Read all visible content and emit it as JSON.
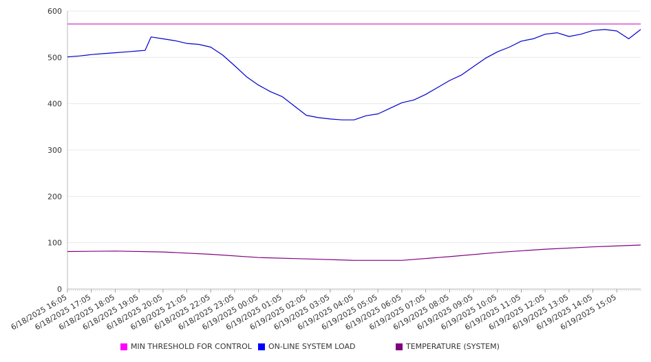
{
  "chart_data": {
    "type": "line",
    "title": "",
    "xlabel": "",
    "ylabel": "",
    "ylim": [
      0,
      600
    ],
    "yticks": [
      0,
      100,
      200,
      300,
      400,
      500,
      600
    ],
    "grid": "horizontal",
    "legend_position": "bottom",
    "x_start": "6/18/2025 16:05",
    "x_end": "6/19/2025 16:05",
    "xtick_labels": [
      "6/18/2025 16:05",
      "6/18/2025 17:05",
      "6/18/2025 18:05",
      "6/18/2025 19:05",
      "6/18/2025 20:05",
      "6/18/2025 21:05",
      "6/18/2025 22:05",
      "6/18/2025 23:05",
      "6/19/2025 00:05",
      "6/19/2025 01:05",
      "6/19/2025 02:05",
      "6/19/2025 03:05",
      "6/19/2025 04:05",
      "6/19/2025 05:05",
      "6/19/2025 06:05",
      "6/19/2025 07:05",
      "6/19/2025 08:05",
      "6/19/2025 09:05",
      "6/19/2025 10:05",
      "6/19/2025 11:05",
      "6/19/2025 12:05",
      "6/19/2025 13:05",
      "6/19/2025 14:05",
      "6/19/2025 15:05"
    ],
    "series": [
      {
        "name": "MIN THRESHOLD FOR CONTROL",
        "color": "#cc33cc",
        "x": [
          "6/18/2025 16:05",
          "6/19/2025 16:05"
        ],
        "values": [
          572,
          572
        ]
      },
      {
        "name": "ON-LINE SYSTEM LOAD",
        "color": "#0000cc",
        "x": [
          "6/18/2025 16:05",
          "6/18/2025 16:35",
          "6/18/2025 17:05",
          "6/18/2025 17:35",
          "6/18/2025 18:05",
          "6/18/2025 18:35",
          "6/18/2025 19:05",
          "6/18/2025 19:20",
          "6/18/2025 19:35",
          "6/18/2025 20:05",
          "6/18/2025 20:35",
          "6/18/2025 21:05",
          "6/18/2025 21:35",
          "6/18/2025 22:05",
          "6/18/2025 22:35",
          "6/18/2025 23:05",
          "6/18/2025 23:35",
          "6/19/2025 00:05",
          "6/19/2025 00:35",
          "6/19/2025 01:05",
          "6/19/2025 01:35",
          "6/19/2025 02:05",
          "6/19/2025 02:35",
          "6/19/2025 03:05",
          "6/19/2025 03:35",
          "6/19/2025 04:05",
          "6/19/2025 04:35",
          "6/19/2025 05:05",
          "6/19/2025 05:35",
          "6/19/2025 06:05",
          "6/19/2025 06:35",
          "6/19/2025 07:05",
          "6/19/2025 07:35",
          "6/19/2025 08:05",
          "6/19/2025 08:35",
          "6/19/2025 09:05",
          "6/19/2025 09:35",
          "6/19/2025 10:05",
          "6/19/2025 10:35",
          "6/19/2025 11:05",
          "6/19/2025 11:35",
          "6/19/2025 12:05",
          "6/19/2025 12:35",
          "6/19/2025 13:05",
          "6/19/2025 13:35",
          "6/19/2025 14:05",
          "6/19/2025 14:35",
          "6/19/2025 15:05",
          "6/19/2025 15:35",
          "6/19/2025 16:05"
        ],
        "values": [
          501,
          503,
          506,
          508,
          510,
          512,
          514,
          515,
          544,
          540,
          536,
          530,
          528,
          522,
          505,
          482,
          458,
          440,
          426,
          415,
          395,
          375,
          370,
          367,
          365,
          365,
          374,
          378,
          390,
          402,
          408,
          420,
          435,
          450,
          462,
          480,
          498,
          512,
          522,
          535,
          540,
          550,
          553,
          545,
          550,
          558,
          560,
          557,
          540,
          560
        ]
      },
      {
        "name": "TEMPERATURE (SYSTEM)",
        "color": "#800080",
        "x": [
          "6/18/2025 16:05",
          "6/18/2025 18:05",
          "6/18/2025 20:05",
          "6/18/2025 22:05",
          "6/19/2025 00:05",
          "6/19/2025 02:05",
          "6/19/2025 04:05",
          "6/19/2025 06:05",
          "6/19/2025 08:05",
          "6/19/2025 10:05",
          "6/19/2025 12:05",
          "6/19/2025 14:05",
          "6/19/2025 16:05"
        ],
        "values": [
          81,
          82,
          80,
          75,
          68,
          65,
          62,
          62,
          70,
          79,
          86,
          91,
          95
        ]
      }
    ]
  }
}
